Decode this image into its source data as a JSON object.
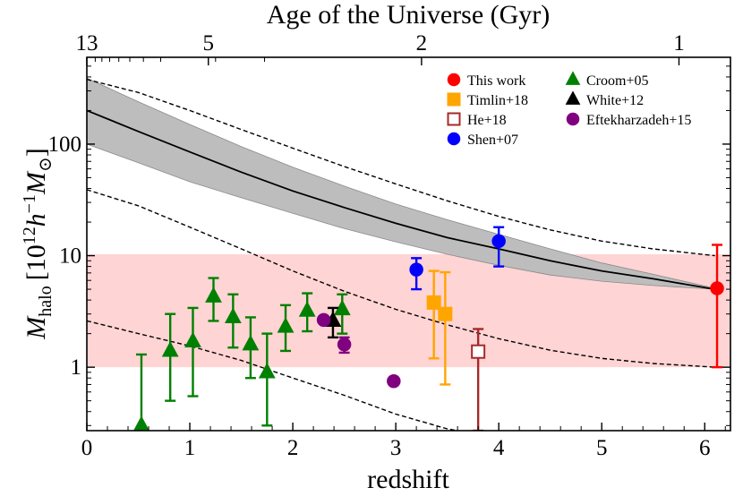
{
  "chart_data": {
    "type": "scatter",
    "xlabel": "redshift",
    "ylabel_parts": {
      "main": "M",
      "sub": "halo",
      "bracket_open": "[10",
      "sup": "12",
      "h": "h",
      "hsup": "−1",
      "msun": "M",
      "msun_sub": "⊙",
      "bracket_close": "]"
    },
    "top_axis_title": "Age of the Universe (Gyr)",
    "xlim": [
      0,
      6.25
    ],
    "ylim": [
      0.27,
      600
    ],
    "yscale": "log",
    "x_ticks": [
      {
        "value": 0,
        "label": "0"
      },
      {
        "value": 1,
        "label": "1"
      },
      {
        "value": 2,
        "label": "2"
      },
      {
        "value": 3,
        "label": "3"
      },
      {
        "value": 4,
        "label": "4"
      },
      {
        "value": 5,
        "label": "5"
      },
      {
        "value": 6,
        "label": "6"
      }
    ],
    "y_ticks": [
      {
        "value": 1,
        "label": "1"
      },
      {
        "value": 10,
        "label": "10"
      },
      {
        "value": 100,
        "label": "100"
      }
    ],
    "top_ticks": [
      {
        "z": 0.0,
        "label": "13"
      },
      {
        "z": 1.18,
        "label": "5"
      },
      {
        "z": 3.25,
        "label": "2"
      },
      {
        "z": 5.75,
        "label": "1"
      }
    ],
    "shaded_band": {
      "ymin": 1,
      "ymax": 10.3,
      "color": "#ffd4d4"
    },
    "growth_track": {
      "z": [
        0.0,
        0.5,
        1.0,
        1.5,
        2.0,
        2.5,
        3.0,
        3.5,
        4.0,
        4.5,
        5.0,
        5.5,
        6.1
      ],
      "mid": [
        200,
        130,
        85,
        56,
        38,
        27,
        19.5,
        14.5,
        11.5,
        9.0,
        7.3,
        6.2,
        5.0
      ],
      "upper": [
        390,
        240,
        150,
        95,
        62,
        42,
        29,
        21,
        15.5,
        11.5,
        8.6,
        6.8,
        5.1
      ],
      "lower": [
        100,
        68,
        46,
        33,
        24,
        17.5,
        13.3,
        10.3,
        8.2,
        6.7,
        5.9,
        5.4,
        5.0
      ],
      "fill_color": "#bdbdbd"
    },
    "dashed_tracks": [
      {
        "z": [
          0.0,
          0.5,
          1.0,
          1.5,
          2.0,
          2.5,
          3.0,
          3.5,
          4.0,
          4.5,
          5.0,
          5.5,
          6.1
        ],
        "m": [
          380,
          290,
          200,
          135,
          92,
          63,
          44,
          31,
          22.5,
          17,
          13.5,
          11.5,
          10
        ]
      },
      {
        "z": [
          0.0,
          0.5,
          1.0,
          1.5,
          2.0,
          2.5,
          3.0,
          3.5,
          4.0,
          4.5,
          5.0,
          5.5,
          6.1
        ],
        "m": [
          39,
          28,
          18,
          11.5,
          7.3,
          4.8,
          3.3,
          2.4,
          1.8,
          1.42,
          1.2,
          1.08,
          1.0
        ]
      },
      {
        "z": [
          0.0,
          0.5,
          1.0,
          1.5,
          2.0,
          2.5,
          3.0,
          3.5,
          3.6
        ],
        "m": [
          2.6,
          2.0,
          1.55,
          1.15,
          0.8,
          0.56,
          0.38,
          0.28,
          0.27
        ]
      }
    ],
    "series": [
      {
        "name": "This work",
        "marker": "circle",
        "color": "#ff0000",
        "filled": true,
        "points": [
          {
            "x": 6.12,
            "y": 5.1,
            "ylo": 1.0,
            "yhi": 12.5
          }
        ]
      },
      {
        "name": "Timlin+18",
        "marker": "square",
        "color": "#ffa500",
        "filled": true,
        "points": [
          {
            "x": 3.37,
            "y": 3.8,
            "ylo": 1.2,
            "yhi": 7.3
          },
          {
            "x": 3.48,
            "y": 3.0,
            "ylo": 0.7,
            "yhi": 7.1
          }
        ]
      },
      {
        "name": "He+18",
        "marker": "square",
        "color": "#a52a2a",
        "filled": false,
        "points": [
          {
            "x": 3.8,
            "y": 1.38,
            "ylo": 0.27,
            "yhi": 2.2
          }
        ]
      },
      {
        "name": "Shen+07",
        "marker": "circle",
        "color": "#0000ff",
        "filled": true,
        "points": [
          {
            "x": 3.2,
            "y": 7.5,
            "ylo": 5.0,
            "yhi": 9.5
          },
          {
            "x": 4.0,
            "y": 13.5,
            "ylo": 8.0,
            "yhi": 18.0
          }
        ]
      },
      {
        "name": "Croom+05",
        "marker": "triangle",
        "color": "#008000",
        "filled": true,
        "points": [
          {
            "x": 0.53,
            "y": 0.3,
            "ylo": 0.27,
            "yhi": 1.3
          },
          {
            "x": 0.81,
            "y": 1.4,
            "ylo": 0.5,
            "yhi": 3.0
          },
          {
            "x": 1.03,
            "y": 1.7,
            "ylo": 0.55,
            "yhi": 3.4
          },
          {
            "x": 1.23,
            "y": 4.3,
            "ylo": 2.6,
            "yhi": 6.3
          },
          {
            "x": 1.42,
            "y": 2.8,
            "ylo": 1.5,
            "yhi": 4.5
          },
          {
            "x": 1.59,
            "y": 1.6,
            "ylo": 0.8,
            "yhi": 2.8
          },
          {
            "x": 1.75,
            "y": 0.9,
            "ylo": 0.3,
            "yhi": 2.0
          },
          {
            "x": 1.93,
            "y": 2.3,
            "ylo": 1.4,
            "yhi": 3.6
          },
          {
            "x": 2.14,
            "y": 3.2,
            "ylo": 2.1,
            "yhi": 4.6
          },
          {
            "x": 2.48,
            "y": 3.3,
            "ylo": 2.0,
            "yhi": 4.5
          }
        ]
      },
      {
        "name": "White+12",
        "marker": "triangle",
        "color": "#000000",
        "filled": true,
        "points": [
          {
            "x": 2.39,
            "y": 2.6,
            "ylo": 1.85,
            "yhi": 3.4
          }
        ]
      },
      {
        "name": "Eftekharzadeh+15",
        "marker": "circle",
        "color": "#800080",
        "filled": true,
        "points": [
          {
            "x": 2.3,
            "y": 2.65
          },
          {
            "x": 2.5,
            "y": 1.6,
            "ylo": 1.35,
            "yhi": 1.85
          },
          {
            "x": 2.98,
            "y": 0.75
          }
        ]
      }
    ],
    "legend_position": "top-right",
    "legend": [
      {
        "label": "This work",
        "marker": "circle",
        "color": "#ff0000",
        "filled": true
      },
      {
        "label": "Timlin+18",
        "marker": "square",
        "color": "#ffa500",
        "filled": true
      },
      {
        "label": "He+18",
        "marker": "square",
        "color": "#a52a2a",
        "filled": false
      },
      {
        "label": "Shen+07",
        "marker": "circle",
        "color": "#0000ff",
        "filled": true
      },
      {
        "label": "Croom+05",
        "marker": "triangle",
        "color": "#008000",
        "filled": true
      },
      {
        "label": "White+12",
        "marker": "triangle",
        "color": "#000000",
        "filled": true
      },
      {
        "label": "Eftekharzadeh+15",
        "marker": "circle",
        "color": "#800080",
        "filled": true
      }
    ]
  }
}
